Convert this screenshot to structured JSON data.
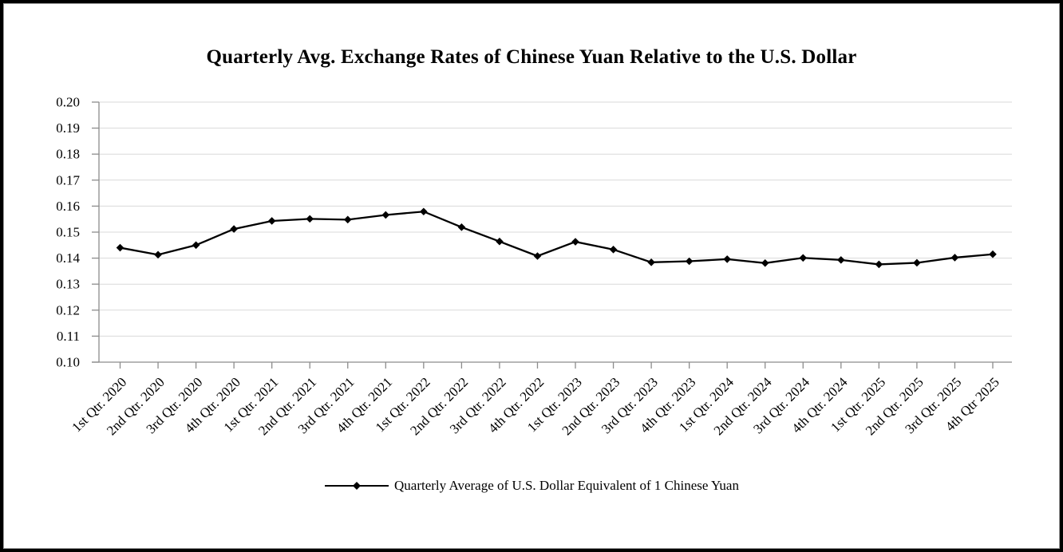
{
  "colors": {
    "line": "#000000",
    "marker": "#000000",
    "grid": "#d9d9d9",
    "axis": "#8c8c8c",
    "text": "#000000",
    "frame": "#000000",
    "background": "#ffffff"
  },
  "chart_data": {
    "type": "line",
    "title": "Quarterly Avg. Exchange Rates of Chinese Yuan Relative to the U.S. Dollar",
    "categories": [
      "1st Qtr. 2020",
      "2nd Qtr. 2020",
      "3rd Qtr. 2020",
      "4th Qtr. 2020",
      "1st Qtr. 2021",
      "2nd Qtr. 2021",
      "3rd Qtr. 2021",
      "4th Qtr. 2021",
      "1st Qtr. 2022",
      "2nd Qtr. 2022",
      "3rd Qtr. 2022",
      "4th Qtr. 2022",
      "1st Qtr. 2023",
      "2nd Qtr. 2023",
      "3rd Qtr. 2023",
      "4th Qtr. 2023",
      "1st Qtr. 2024",
      "2nd Qtr. 2024",
      "3rd Qtr. 2024",
      "4th Qtr. 2024",
      "1st Qtr. 2025",
      "2nd Qtr. 2025",
      "3rd Qtr. 2025",
      "4th Qtr 2025"
    ],
    "series": [
      {
        "name": "Quarterly Average of U.S. Dollar Equivalent of 1 Chinese Yuan",
        "values": [
          0.144,
          0.1413,
          0.145,
          0.1512,
          0.1543,
          0.1551,
          0.1548,
          0.1566,
          0.1579,
          0.1519,
          0.1464,
          0.1408,
          0.1463,
          0.1433,
          0.1384,
          0.1388,
          0.1396,
          0.1381,
          0.1401,
          0.1393,
          0.1376,
          0.1382,
          0.1402,
          0.1415
        ]
      }
    ],
    "xlabel": "",
    "ylabel": "",
    "ylim": [
      0.1,
      0.2
    ],
    "ytick_step": 0.01,
    "ytick_labels": [
      "0.10",
      "0.11",
      "0.12",
      "0.13",
      "0.14",
      "0.15",
      "0.16",
      "0.17",
      "0.18",
      "0.19",
      "0.20"
    ],
    "grid": true,
    "marker": "diamond",
    "x_tick_label_rotation": -45,
    "legend_position": "bottom"
  }
}
